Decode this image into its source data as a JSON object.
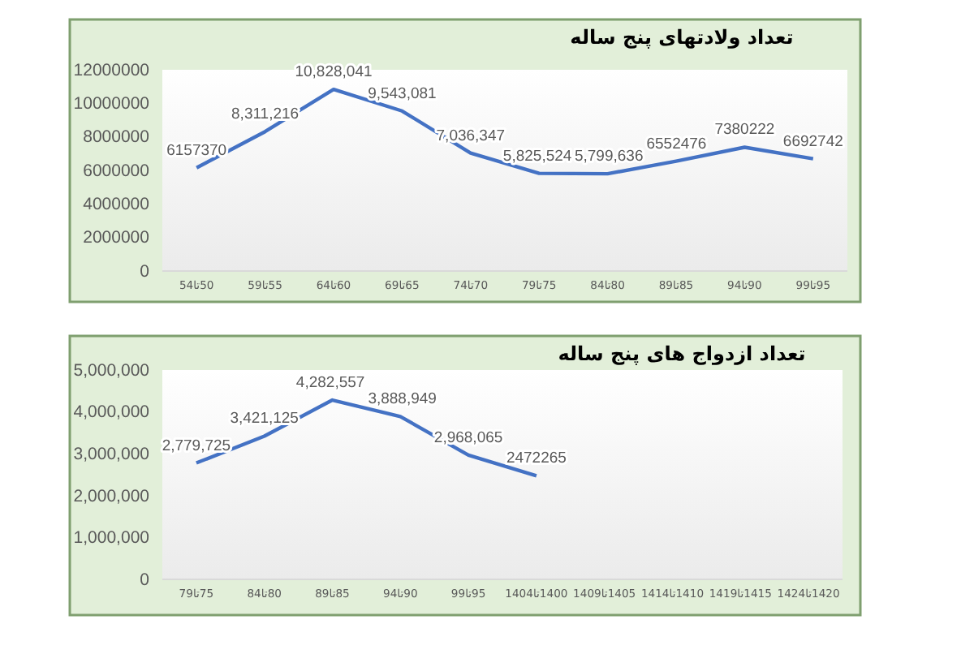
{
  "chart_data": [
    {
      "type": "line",
      "title": "تعداد ولادتهای پنج ساله",
      "categories": [
        "50تا54",
        "55تا59",
        "60تا64",
        "65تا69",
        "70تا74",
        "75تا79",
        "80تا84",
        "85تا89",
        "90تا94",
        "95تا99"
      ],
      "series": [
        {
          "color": "#4472c4",
          "values": [
            6157370,
            8311216,
            10828041,
            9543081,
            7036347,
            5825524,
            5799636,
            6552476,
            7380222,
            6692742
          ],
          "value_labels": [
            "6157370",
            "8,311,216",
            "10,828,041",
            "9,543,081",
            "7,036,347",
            "5,825,524",
            "5,799,636",
            "6552476",
            "7380222",
            "6692742"
          ]
        }
      ],
      "ylim": [
        0,
        12000000
      ],
      "yticks": [
        0,
        2000000,
        4000000,
        6000000,
        8000000,
        10000000,
        12000000
      ],
      "marker": "none"
    },
    {
      "type": "line",
      "title": "تعداد ازدواج های پنج ساله",
      "categories": [
        "75تا79",
        "80تا84",
        "85تا89",
        "90تا94",
        "95تا99",
        "1400تا1404",
        "1405تا1409",
        "1410تا1414",
        "1415تا1419",
        "1420تا1424"
      ],
      "series": [
        {
          "color": "#4472c4",
          "values": [
            2779725,
            3421125,
            4282557,
            3888949,
            2968065,
            2472265,
            null,
            null,
            null,
            null
          ],
          "value_labels": [
            "2,779,725",
            "3,421,125",
            "4,282,557",
            "3,888,949",
            "2,968,065",
            "2472265",
            null,
            null,
            null,
            null
          ]
        }
      ],
      "ylim": [
        0,
        5000000
      ],
      "yticks": [
        {
          "value": 0,
          "label": "0"
        },
        {
          "value": 1000000,
          "label": "1,000,000"
        },
        {
          "value": 2000000,
          "label": "2,000,000"
        },
        {
          "value": 3000000,
          "label": "3,000,000"
        },
        {
          "value": 4000000,
          "label": "4,000,000"
        },
        {
          "value": 5000000,
          "label": "5,000,000"
        }
      ],
      "marker": "none"
    }
  ]
}
